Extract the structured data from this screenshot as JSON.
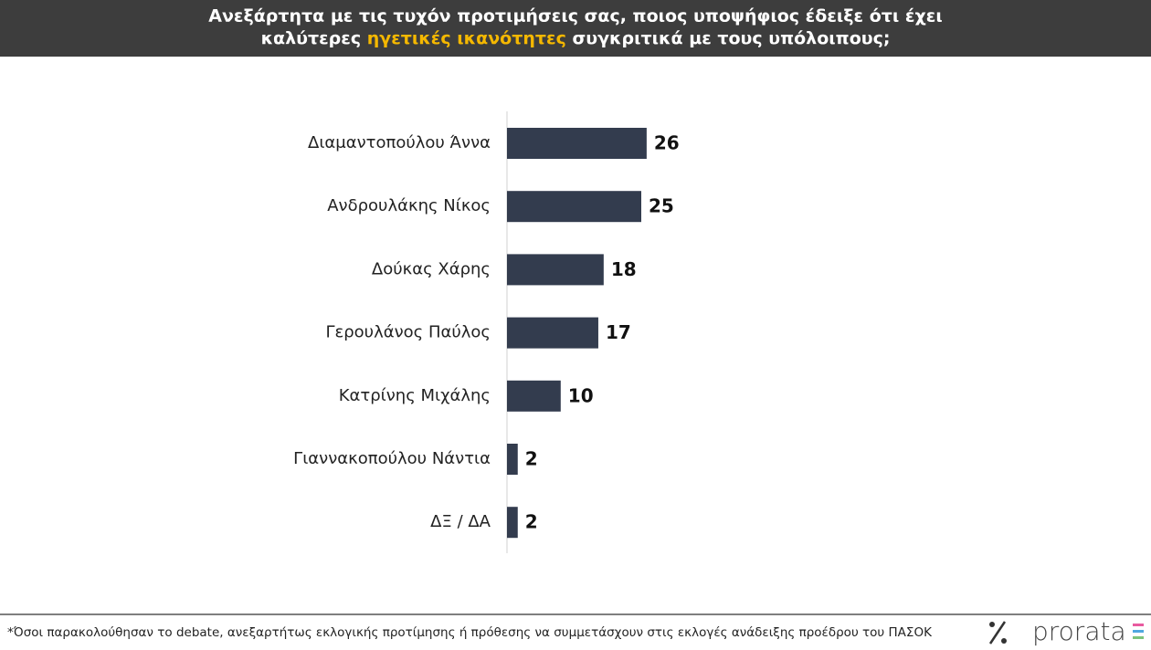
{
  "chart_data": {
    "type": "bar",
    "title": {
      "line1": "Ανεξάρτητα με τις τυχόν προτιμήσεις σας, ποιος υποψήφιος έδειξε ότι έχει",
      "line2_start": "καλύτερες ",
      "line2_highlight": "ηγετικές ικανότητες",
      "line2_end": " συγκριτικά με τους υπόλοιπους;"
    },
    "categories": [
      "Διαμαντοπούλου Άννα",
      "Ανδρουλάκης Νίκος",
      "Δούκας Χάρης",
      "Γερουλάνος Παύλος",
      "Κατρίνης Μιχάλης",
      "Γιαννακοπούλου Νάντια",
      "ΔΞ / ΔΑ"
    ],
    "values": [
      26,
      25,
      18,
      17,
      10,
      2,
      2
    ],
    "color": "#333c4e",
    "footnote": "*Όσοι παρακολούθησαν το debate, ανεξαρτήτως εκλογικής προτίμησης ή πρόθεσης να συμμετάσχουν στις εκλογές ανάδειξης προέδρου του ΠΑΣΟΚ",
    "logo": "prorata"
  }
}
